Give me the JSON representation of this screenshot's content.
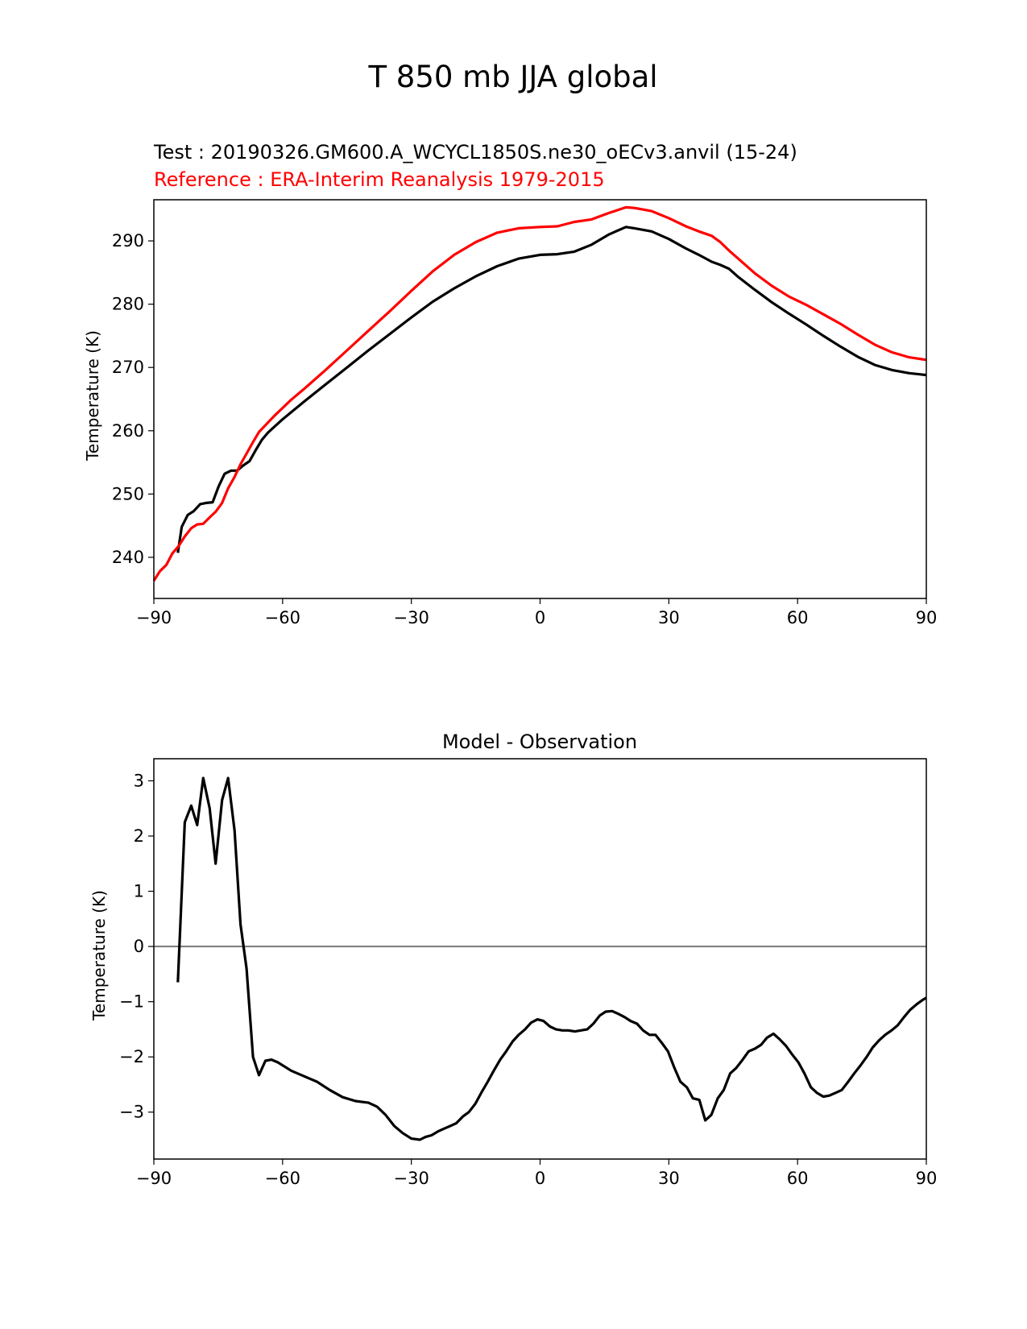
{
  "figure": {
    "title": "T 850 mb JJA global"
  },
  "chart_data": [
    {
      "type": "line",
      "title_left_1": "Test : 20190326.GM600.A_WCYCL1850S.ne30_oECv3.anvil (15-24)",
      "title_left_2": "Reference : ERA-Interim Reanalysis 1979-2015",
      "xlabel": "",
      "ylabel": "Temperature (K)",
      "xlim": [
        -90,
        90
      ],
      "ylim": [
        233.5,
        296.5
      ],
      "xticks": [
        -90,
        -60,
        -30,
        0,
        30,
        60,
        90
      ],
      "xtick_labels": [
        "−90",
        "−60",
        "−30",
        "0",
        "30",
        "60",
        "90"
      ],
      "yticks": [
        240,
        250,
        260,
        270,
        280,
        290
      ],
      "ytick_labels": [
        "240",
        "250",
        "260",
        "270",
        "280",
        "290"
      ],
      "series": [
        {
          "name": "Test",
          "color": "#000000",
          "x": [
            -84.4,
            -83.5,
            -82.1,
            -80.7,
            -79.2,
            -77.8,
            -76.3,
            -74.9,
            -73.5,
            -72.0,
            -70.6,
            -69.2,
            -67.7,
            -66.3,
            -64.8,
            -63.4,
            -60,
            -55,
            -50,
            -45,
            -40,
            -35,
            -30,
            -25,
            -20,
            -15,
            -10,
            -5,
            0,
            4,
            8,
            12,
            16,
            20,
            22,
            26,
            30,
            34,
            37,
            40,
            42,
            44,
            46,
            50,
            54,
            58,
            62,
            66,
            70,
            74,
            78,
            82,
            86,
            90
          ],
          "values": [
            240.7,
            244.8,
            246.7,
            247.3,
            248.4,
            248.6,
            248.7,
            251.2,
            253.2,
            253.7,
            253.7,
            254.5,
            255.2,
            256.9,
            258.6,
            259.7,
            261.8,
            264.6,
            267.3,
            270.0,
            272.7,
            275.3,
            277.9,
            280.4,
            282.5,
            284.4,
            286.0,
            287.2,
            287.8,
            287.9,
            288.3,
            289.4,
            291.0,
            292.2,
            292.0,
            291.5,
            290.3,
            288.8,
            287.8,
            286.7,
            286.2,
            285.6,
            284.4,
            282.3,
            280.3,
            278.5,
            276.8,
            275.0,
            273.3,
            271.7,
            270.4,
            269.6,
            269.1,
            268.8
          ]
        },
        {
          "name": "Reference",
          "color": "#ff0000",
          "x": [
            -90,
            -88.6,
            -87.1,
            -85.7,
            -84.2,
            -82.8,
            -81.3,
            -79.9,
            -78.5,
            -77.0,
            -75.6,
            -74.1,
            -72.7,
            -71.2,
            -69.8,
            -68.4,
            -66.9,
            -65.5,
            -62,
            -58,
            -55,
            -50,
            -45,
            -40,
            -35,
            -30,
            -25,
            -20,
            -15,
            -10,
            -5,
            0,
            4,
            8,
            12,
            16,
            20,
            22,
            26,
            30,
            34,
            37,
            40,
            42,
            44,
            46,
            50,
            54,
            58,
            62,
            66,
            70,
            74,
            78,
            82,
            86,
            90
          ],
          "values": [
            236.3,
            237.8,
            238.8,
            240.6,
            241.8,
            243.3,
            244.6,
            245.2,
            245.3,
            246.3,
            247.2,
            248.6,
            250.9,
            252.7,
            254.7,
            256.4,
            258.2,
            259.8,
            262.3,
            264.9,
            266.6,
            269.6,
            272.7,
            275.8,
            278.9,
            282.1,
            285.2,
            287.8,
            289.8,
            291.3,
            292.0,
            292.2,
            292.3,
            293.0,
            293.4,
            294.4,
            295.3,
            295.2,
            294.7,
            293.6,
            292.3,
            291.5,
            290.8,
            289.8,
            288.5,
            287.3,
            284.9,
            282.9,
            281.2,
            279.9,
            278.4,
            276.9,
            275.2,
            273.6,
            272.4,
            271.6,
            271.2
          ]
        }
      ]
    },
    {
      "type": "line",
      "title": "Model - Observation",
      "xlabel": "",
      "ylabel": "Temperature (K)",
      "xlim": [
        -90,
        90
      ],
      "ylim": [
        -3.85,
        3.4
      ],
      "zero_line": 0,
      "xticks": [
        -90,
        -60,
        -30,
        0,
        30,
        60,
        90
      ],
      "xtick_labels": [
        "−90",
        "−60",
        "−30",
        "0",
        "30",
        "60",
        "90"
      ],
      "yticks": [
        -3,
        -2,
        -1,
        0,
        1,
        2,
        3
      ],
      "ytick_labels": [
        "−3",
        "−2",
        "−1",
        "0",
        "1",
        "2",
        "3"
      ],
      "series": [
        {
          "name": "Model - Observation",
          "color": "#000000",
          "x": [
            -84.4,
            -82.8,
            -81.3,
            -79.9,
            -78.5,
            -77.0,
            -75.6,
            -74.1,
            -72.7,
            -71.2,
            -69.8,
            -68.4,
            -66.9,
            -65.5,
            -64.0,
            -62.6,
            -61.1,
            -58.0,
            -55.0,
            -52.0,
            -49.0,
            -46.0,
            -43.0,
            -40.0,
            -38.0,
            -36.0,
            -34.0,
            -32.0,
            -30.0,
            -28.0,
            -26.7,
            -25.3,
            -23.8,
            -22.4,
            -20.9,
            -19.5,
            -18.0,
            -16.6,
            -15.1,
            -13.7,
            -12.2,
            -10.8,
            -9.3,
            -7.9,
            -6.4,
            -5.0,
            -3.5,
            -2.1,
            -0.6,
            0.8,
            2.3,
            3.7,
            5.2,
            6.6,
            8.1,
            9.5,
            11.0,
            12.4,
            13.9,
            15.3,
            16.8,
            18.2,
            19.7,
            21.1,
            22.6,
            24.0,
            25.5,
            26.9,
            28.4,
            29.8,
            31.3,
            32.7,
            34.2,
            35.6,
            37.1,
            38.5,
            39.9,
            41.4,
            42.8,
            44.3,
            45.7,
            47.2,
            48.6,
            50.1,
            51.5,
            52.9,
            54.4,
            55.8,
            57.3,
            58.7,
            60.2,
            61.6,
            63.1,
            64.5,
            66.0,
            67.4,
            68.9,
            70.3,
            71.8,
            73.2,
            74.7,
            76.1,
            77.5,
            79.0,
            80.4,
            81.9,
            83.3,
            84.8,
            86.2,
            87.7,
            89.1,
            90
          ],
          "values": [
            -0.65,
            2.25,
            2.55,
            2.2,
            3.05,
            2.5,
            1.5,
            2.65,
            3.05,
            2.1,
            0.4,
            -0.4,
            -2.0,
            -2.33,
            -2.07,
            -2.05,
            -2.1,
            -2.25,
            -2.35,
            -2.45,
            -2.6,
            -2.73,
            -2.8,
            -2.83,
            -2.9,
            -3.05,
            -3.25,
            -3.38,
            -3.48,
            -3.5,
            -3.45,
            -3.42,
            -3.35,
            -3.3,
            -3.25,
            -3.2,
            -3.08,
            -3.0,
            -2.85,
            -2.65,
            -2.45,
            -2.25,
            -2.05,
            -1.9,
            -1.72,
            -1.6,
            -1.5,
            -1.38,
            -1.32,
            -1.35,
            -1.45,
            -1.5,
            -1.52,
            -1.52,
            -1.54,
            -1.52,
            -1.5,
            -1.4,
            -1.25,
            -1.18,
            -1.17,
            -1.22,
            -1.28,
            -1.35,
            -1.4,
            -1.52,
            -1.6,
            -1.6,
            -1.75,
            -1.9,
            -2.2,
            -2.45,
            -2.55,
            -2.75,
            -2.78,
            -3.15,
            -3.05,
            -2.75,
            -2.6,
            -2.3,
            -2.2,
            -2.05,
            -1.9,
            -1.85,
            -1.78,
            -1.65,
            -1.58,
            -1.68,
            -1.8,
            -1.95,
            -2.1,
            -2.3,
            -2.55,
            -2.65,
            -2.72,
            -2.7,
            -2.65,
            -2.6,
            -2.45,
            -2.3,
            -2.15,
            -2.0,
            -1.83,
            -1.7,
            -1.6,
            -1.52,
            -1.43,
            -1.28,
            -1.15,
            -1.05,
            -0.97,
            -0.93
          ]
        }
      ]
    }
  ]
}
